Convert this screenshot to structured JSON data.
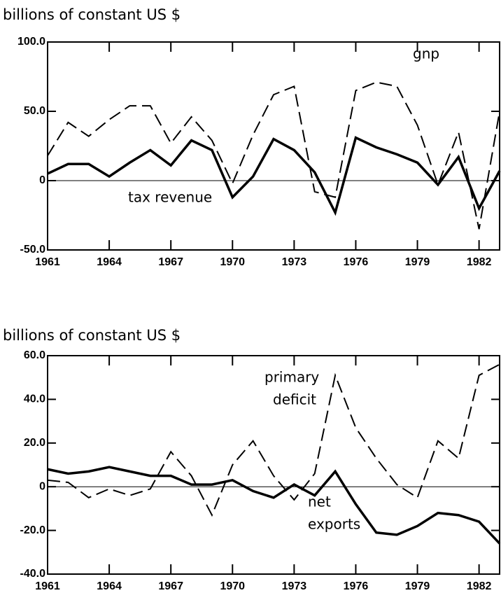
{
  "chart_data": [
    {
      "type": "line",
      "ylabel": "billions of constant US $",
      "x": [
        1961,
        1962,
        1963,
        1964,
        1965,
        1966,
        1967,
        1968,
        1969,
        1970,
        1971,
        1972,
        1973,
        1974,
        1975,
        1976,
        1977,
        1978,
        1979,
        1980,
        1981,
        1982,
        1983
      ],
      "xlim": [
        1961,
        1983
      ],
      "xticks": [
        1961,
        1964,
        1967,
        1970,
        1973,
        1976,
        1979,
        1982
      ],
      "ylim": [
        -50,
        100
      ],
      "yticks": [
        {
          "value": -50,
          "label": "-50.0"
        },
        0,
        {
          "value": 50,
          "label": "50.0"
        },
        {
          "value": 100,
          "label": "100.0"
        }
      ],
      "series": [
        {
          "name": "gnp",
          "color": "#000000",
          "dash": true,
          "values": [
            18,
            42,
            32,
            44,
            54,
            54,
            27,
            46,
            29,
            -2,
            33,
            62,
            68,
            -8,
            -12,
            65,
            71,
            68,
            40,
            -3,
            35,
            -35,
            50
          ]
        },
        {
          "name": "tax revenue",
          "color": "#000000",
          "dash": false,
          "values": [
            5,
            12,
            12,
            3,
            13,
            22,
            11,
            29,
            22,
            -12,
            3,
            30,
            22,
            6,
            -23,
            31,
            24,
            19,
            13,
            -3,
            17,
            -20,
            7
          ]
        }
      ]
    },
    {
      "type": "line",
      "ylabel": "billions of constant US $",
      "x": [
        1961,
        1962,
        1963,
        1964,
        1965,
        1966,
        1967,
        1968,
        1969,
        1970,
        1971,
        1972,
        1973,
        1974,
        1975,
        1976,
        1977,
        1978,
        1979,
        1980,
        1981,
        1982,
        1983
      ],
      "xlim": [
        1961,
        1983
      ],
      "xticks": [
        1961,
        1964,
        1967,
        1970,
        1973,
        1976,
        1979,
        1982
      ],
      "ylim": [
        -40,
        60
      ],
      "yticks": [
        {
          "value": -40,
          "label": "-40.0"
        },
        {
          "value": -20,
          "label": "-20.0"
        },
        0,
        {
          "value": 20,
          "label": "20.0"
        },
        {
          "value": 40,
          "label": "40.0"
        },
        {
          "value": 60,
          "label": "60.0"
        }
      ],
      "series": [
        {
          "name": [
            "primary",
            "deficit"
          ],
          "color": "#000000",
          "dash": true,
          "values": [
            3,
            2,
            -5,
            -1,
            -4,
            -1,
            16,
            5,
            -13,
            10,
            21,
            5,
            -6,
            6,
            51,
            27,
            13,
            1,
            -5,
            21,
            13,
            51,
            56
          ]
        },
        {
          "name": [
            "net",
            "exports"
          ],
          "color": "#000000",
          "dash": false,
          "values": [
            8,
            6,
            7,
            9,
            7,
            5,
            5,
            1,
            1,
            3,
            -2,
            -5,
            1,
            -4,
            7,
            -8,
            -21,
            -22,
            -18,
            -12,
            -13,
            -16,
            -26
          ]
        }
      ]
    }
  ]
}
